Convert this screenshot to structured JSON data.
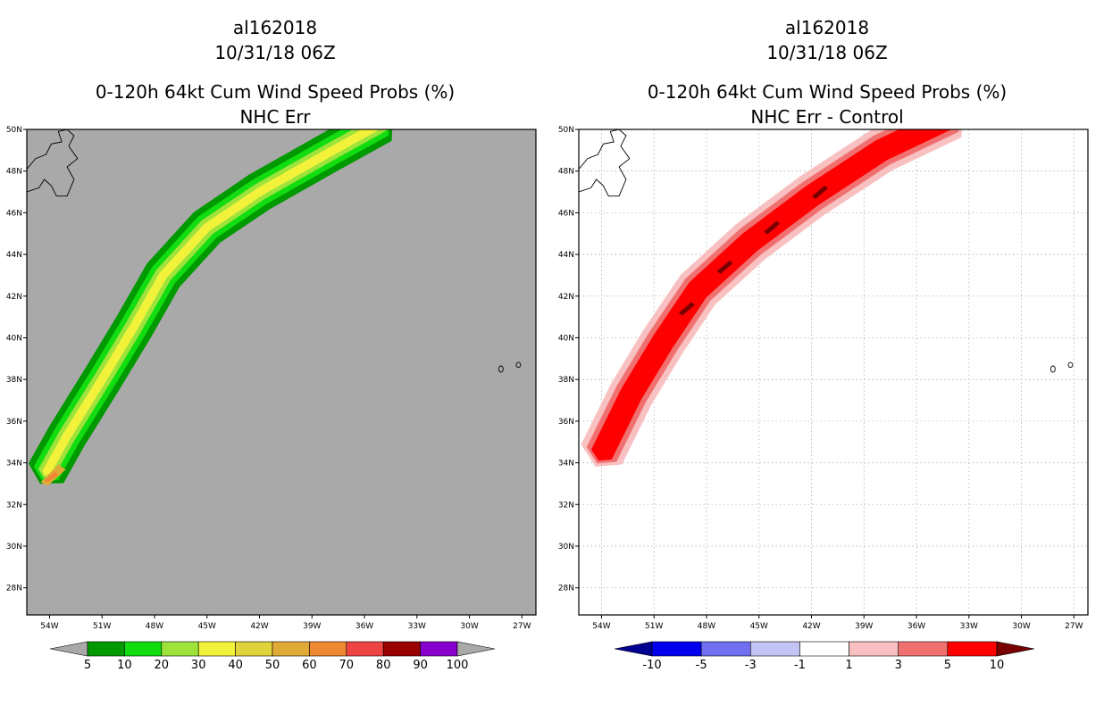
{
  "chart_data": [
    {
      "type": "heatmap",
      "panel": "left",
      "title_lines": [
        "al162018",
        "10/31/18 06Z",
        "0-120h 64kt Cum Wind Speed Probs (%)",
        "NHC Err"
      ],
      "xlabel": "",
      "ylabel": "",
      "x_ticks": [
        "54W",
        "51W",
        "48W",
        "45W",
        "42W",
        "39W",
        "36W",
        "33W",
        "30W",
        "27W"
      ],
      "y_ticks": [
        "50N",
        "48N",
        "46N",
        "44N",
        "42N",
        "40N",
        "38N",
        "36N",
        "34N",
        "32N",
        "30N",
        "28N"
      ],
      "xlim": [
        -55.3,
        -26.2
      ],
      "ylim": [
        26.7,
        50
      ],
      "grid": false,
      "background_color": "#a9a9a9",
      "colorbar": {
        "levels": [
          "5",
          "10",
          "20",
          "30",
          "40",
          "50",
          "60",
          "70",
          "80",
          "90",
          "100"
        ],
        "colors": [
          "#a9a9a9",
          "#009900",
          "#11dd11",
          "#9ee23c",
          "#f2f23a",
          "#e0d23a",
          "#e0aa36",
          "#ee8833",
          "#ee4444",
          "#990000",
          "#8800cc",
          "#a9a9a9"
        ]
      },
      "track_core": [
        [
          -54.2,
          33.5
        ],
        [
          -53.0,
          35.3
        ],
        [
          -51.0,
          38.0
        ],
        [
          -49.2,
          40.5
        ],
        [
          -47.5,
          43.0
        ],
        [
          -45.0,
          45.3
        ],
        [
          -42.0,
          47.0
        ],
        [
          -38.0,
          48.9
        ],
        [
          -35.0,
          50.3
        ]
      ],
      "bands": [
        {
          "level": "5-10",
          "halfwidth": 1.15
        },
        {
          "level": "10-20",
          "halfwidth": 0.8
        },
        {
          "level": "20-30",
          "halfwidth": 0.5
        },
        {
          "level": "30-40",
          "halfwidth": 0.25
        }
      ],
      "islands": [
        "Newfoundland",
        "Azores"
      ]
    },
    {
      "type": "heatmap",
      "panel": "right",
      "title_lines": [
        "al162018",
        "10/31/18 06Z",
        "0-120h 64kt Cum Wind Speed Probs (%)",
        "NHC Err - Control"
      ],
      "xlabel": "",
      "ylabel": "",
      "x_ticks": [
        "54W",
        "51W",
        "48W",
        "45W",
        "42W",
        "39W",
        "36W",
        "33W",
        "30W",
        "27W"
      ],
      "y_ticks": [
        "50N",
        "48N",
        "46N",
        "44N",
        "42N",
        "40N",
        "38N",
        "36N",
        "34N",
        "32N",
        "30N",
        "28N"
      ],
      "xlim": [
        -55.3,
        -26.2
      ],
      "ylim": [
        26.7,
        50
      ],
      "grid": true,
      "background_color": "#ffffff",
      "colorbar": {
        "levels": [
          "-10",
          "-5",
          "-3",
          "-1",
          "1",
          "3",
          "5",
          "10"
        ],
        "colors": [
          "#000090",
          "#0000ee",
          "#6f6ff0",
          "#c4c4f4",
          "#ffffff",
          "#f8c0c0",
          "#f07070",
          "#ff0000",
          "#780000"
        ]
      },
      "track_core": [
        [
          -54.0,
          34.4
        ],
        [
          -52.3,
          37.3
        ],
        [
          -50.5,
          39.8
        ],
        [
          -48.5,
          42.3
        ],
        [
          -45.5,
          44.6
        ],
        [
          -42.0,
          46.8
        ],
        [
          -38.0,
          49.0
        ],
        [
          -34.0,
          50.6
        ]
      ],
      "bands": [
        {
          "level": "1-3",
          "halfwidth": 1.3
        },
        {
          "level": "3-5",
          "halfwidth": 0.95
        },
        {
          "level": "5-10",
          "halfwidth": 0.65
        }
      ],
      "islands": [
        "Newfoundland",
        "Azores"
      ]
    }
  ]
}
